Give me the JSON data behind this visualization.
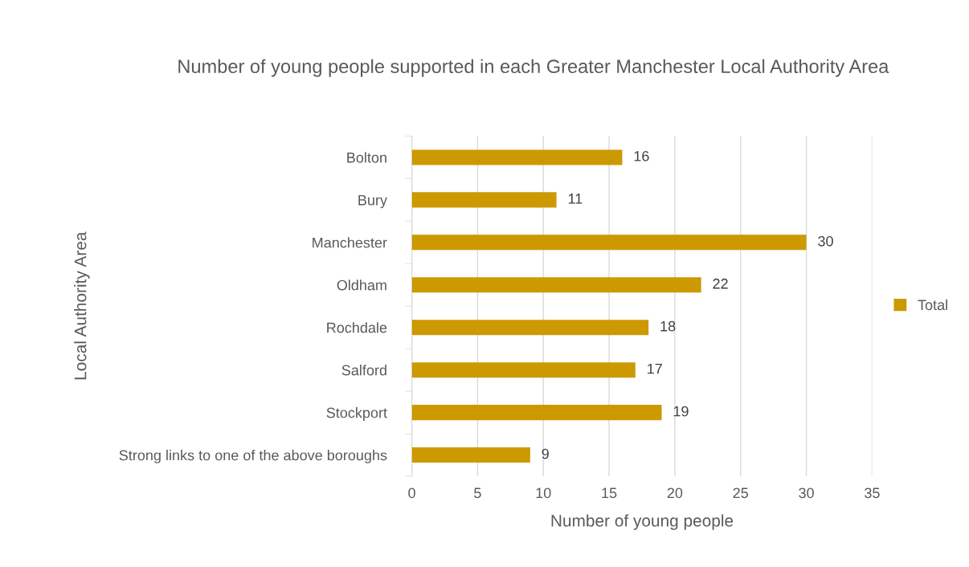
{
  "chart_data": {
    "type": "bar",
    "orientation": "horizontal",
    "title": "Number of young people supported in each Greater Manchester Local Authority Area",
    "xlabel": "Number of young people",
    "ylabel": "Local Authority Area",
    "categories": [
      "Bolton",
      "Bury",
      "Manchester",
      "Oldham",
      "Rochdale",
      "Salford",
      "Stockport",
      "Strong links to one of the above boroughs"
    ],
    "series": [
      {
        "name": "Total",
        "color": "#cc9900",
        "values": [
          16,
          11,
          30,
          22,
          18,
          17,
          19,
          9
        ]
      }
    ],
    "xlim": [
      0,
      35
    ],
    "xticks": [
      0,
      5,
      10,
      15,
      20,
      25,
      30,
      35
    ],
    "grid": "x",
    "legend": "right",
    "data_labels": true
  }
}
